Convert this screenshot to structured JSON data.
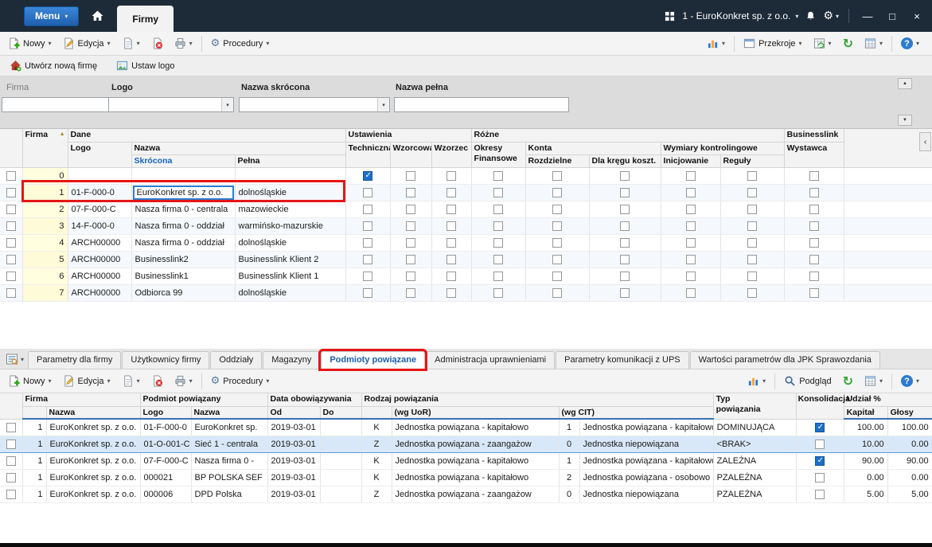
{
  "titlebar": {
    "menu": "Menu",
    "tab": "Firmy",
    "company_selector": "1 - EuroKonkret sp. z o.o."
  },
  "toolbar_top": {
    "nowy": "Nowy",
    "edycja": "Edycja",
    "procedury": "Procedury",
    "przekroje": "Przekroje"
  },
  "action_bar": {
    "create_company": "Utwórz nową firmę",
    "set_logo": "Ustaw logo"
  },
  "filter_panel": {
    "firma_label": "Firma",
    "logo_label": "Logo",
    "nazwa_skrocona_label": "Nazwa skrócona",
    "nazwa_pelna_label": "Nazwa pełna"
  },
  "icons": {
    "caret_down": "▾",
    "gear": "⚙",
    "refresh": "↻",
    "minimize": "—",
    "maximize": "□",
    "close": "×",
    "sort_asc": "▲",
    "scroll_up": "▲",
    "scroll_down": "▼",
    "collapse_left": "‹",
    "filter_menu": "≡",
    "help": "?"
  },
  "main_table": {
    "headers": {
      "firma": "Firma",
      "dane": "Dane",
      "ustawienia": "Ustawienia",
      "rozne": "Różne",
      "businesslink": "Businesslink",
      "logo": "Logo",
      "nazwa": "Nazwa",
      "skrocona": "Skrócona",
      "pelna": "Pełna",
      "techniczna": "Techniczna",
      "wzorcowa": "Wzorcowa",
      "wzorzec": "Wzorzec",
      "okresy_finansowe": "Okresy Finansowe",
      "konta": "Konta",
      "rozdzielne": "Rozdzielne",
      "dla_kregu_koszt": "Dla kręgu koszt.",
      "wymiary_kontrolingowe": "Wymiary kontrolingowe",
      "inicjowanie": "Inicjowanie",
      "reguly": "Reguły",
      "wystawca": "Wystawca"
    },
    "rows": [
      {
        "firma": "0",
        "logo": "",
        "skrocona": "",
        "pelna": "",
        "techniczna": true,
        "wzorcowa": false,
        "wzorzec": false,
        "okresy": false,
        "rozdzielne": false,
        "dla_kregu": false,
        "inicjowanie": false,
        "reguly": false,
        "wystawca": false
      },
      {
        "firma": "1",
        "logo": "01-F-000-0",
        "skrocona": "EuroKonkret sp. z o.o.",
        "pelna": "dolnośląskie",
        "editing": true,
        "selected": true,
        "techniczna": false,
        "wzorcowa": false,
        "wzorzec": false,
        "okresy": false,
        "rozdzielne": false,
        "dla_kregu": false,
        "inicjowanie": false,
        "reguly": false,
        "wystawca": false
      },
      {
        "firma": "2",
        "logo": "07-F-000-C",
        "skrocona": "Nasza firma 0 - centrala",
        "pelna": "mazowieckie",
        "techniczna": false,
        "wzorcowa": false,
        "wzorzec": false,
        "okresy": false,
        "rozdzielne": false,
        "dla_kregu": false,
        "inicjowanie": false,
        "reguly": false,
        "wystawca": false
      },
      {
        "firma": "3",
        "logo": "14-F-000-0",
        "skrocona": "Nasza firma 0 - oddział",
        "pelna": "warmińsko-mazurskie",
        "techniczna": false,
        "wzorcowa": false,
        "wzorzec": false,
        "okresy": false,
        "rozdzielne": false,
        "dla_kregu": false,
        "inicjowanie": false,
        "reguly": false,
        "wystawca": false
      },
      {
        "firma": "4",
        "logo": "ARCH00000",
        "skrocona": "Nasza firma 0 - oddział",
        "pelna": "dolnośląskie",
        "techniczna": false,
        "wzorcowa": false,
        "wzorzec": false,
        "okresy": false,
        "rozdzielne": false,
        "dla_kregu": false,
        "inicjowanie": false,
        "reguly": false,
        "wystawca": false
      },
      {
        "firma": "5",
        "logo": "ARCH00000",
        "skrocona": "Businesslink2",
        "pelna": "Businesslink Klient 2",
        "techniczna": false,
        "wzorcowa": false,
        "wzorzec": false,
        "okresy": false,
        "rozdzielne": false,
        "dla_kregu": false,
        "inicjowanie": false,
        "reguly": false,
        "wystawca": false
      },
      {
        "firma": "6",
        "logo": "ARCH00000",
        "skrocona": "Businesslink1",
        "pelna": "Businesslink Klient 1",
        "techniczna": false,
        "wzorcowa": false,
        "wzorzec": false,
        "okresy": false,
        "rozdzielne": false,
        "dla_kregu": false,
        "inicjowanie": false,
        "reguly": false,
        "wystawca": false
      },
      {
        "firma": "7",
        "logo": "ARCH00000",
        "skrocona": "Odbiorca 99",
        "pelna": "dolnośląskie",
        "techniczna": false,
        "wzorcowa": false,
        "wzorzec": false,
        "okresy": false,
        "rozdzielne": false,
        "dla_kregu": false,
        "inicjowanie": false,
        "reguly": false,
        "wystawca": false
      }
    ]
  },
  "bottom_tabs": {
    "tabs": [
      "Parametry dla firmy",
      "Użytkownicy firmy",
      "Oddziały",
      "Magazyny",
      "Podmioty powiązane",
      "Administracja uprawnieniami",
      "Parametry komunikacji z UPS",
      "Wartości parametrów dla JPK Sprawozdania"
    ],
    "active_index": 4
  },
  "toolbar_bottom": {
    "nowy": "Nowy",
    "edycja": "Edycja",
    "procedury": "Procedury",
    "podglad": "Podgląd"
  },
  "bottom_table": {
    "headers": {
      "firma": "Firma",
      "nazwa": "Nazwa",
      "podmiot_powiazany": "Podmiot powiązany",
      "logo": "Logo",
      "nazwa2": "Nazwa",
      "data_obowiazywania": "Data obowiązywania",
      "od": "Od",
      "do": "Do",
      "rodzaj_powiazania": "Rodzaj powiązania",
      "wg_uor": "(wg UoR)",
      "wg_cit": "(wg CIT)",
      "typ_powiazania": "Typ powiązania",
      "konsolidacja": "Konsolidacja",
      "udzial": "Udział %",
      "kapital": "Kapitał",
      "glosy": "Głosy"
    },
    "rows": [
      {
        "firma": "1",
        "firma_nazwa": "EuroKonkret sp. z o.o.",
        "logo": "01-F-000-0",
        "nazwa": "EuroKonkret sp.",
        "od": "2019-03-01",
        "do": "",
        "kod_uor": "K",
        "rodzaj_uor": "Jednostka powiązana - kapitałowo",
        "kod_cit": "1",
        "rodzaj_cit": "Jednostka powiązana - kapitałowo",
        "typ": "DOMINUJĄCA",
        "konsolidacja": true,
        "kapital": "100.00",
        "glosy": "100.00"
      },
      {
        "firma": "1",
        "firma_nazwa": "EuroKonkret sp. z o.o.",
        "logo": "01-O-001-C",
        "nazwa": "Sieć 1 - centrala",
        "od": "2019-03-01",
        "do": "",
        "kod_uor": "Z",
        "rodzaj_uor": "Jednostka powiązana - zaangażow",
        "kod_cit": "0",
        "rodzaj_cit": "Jednostka niepowiązana",
        "typ": "<BRAK>",
        "konsolidacja": false,
        "kapital": "10.00",
        "glosy": "0.00",
        "selected": true
      },
      {
        "firma": "1",
        "firma_nazwa": "EuroKonkret sp. z o.o.",
        "logo": "07-F-000-C",
        "nazwa": "Nasza firma 0 -",
        "od": "2019-03-01",
        "do": "",
        "kod_uor": "K",
        "rodzaj_uor": "Jednostka powiązana - kapitałowo",
        "kod_cit": "1",
        "rodzaj_cit": "Jednostka powiązana - kapitałowo",
        "typ": "ZALEŻNA",
        "konsolidacja": true,
        "kapital": "90.00",
        "glosy": "90.00"
      },
      {
        "firma": "1",
        "firma_nazwa": "EuroKonkret sp. z o.o.",
        "logo": "000021",
        "nazwa": "BP POLSKA SEF",
        "od": "2019-03-01",
        "do": "",
        "kod_uor": "K",
        "rodzaj_uor": "Jednostka powiązana - kapitałowo",
        "kod_cit": "2",
        "rodzaj_cit": "Jednostka powiązana - osobowo",
        "typ": "PZALEŻNA",
        "konsolidacja": false,
        "kapital": "0.00",
        "glosy": "0.00"
      },
      {
        "firma": "1",
        "firma_nazwa": "EuroKonkret sp. z o.o.",
        "logo": "000006",
        "nazwa": "DPD Polska",
        "od": "2019-03-01",
        "do": "",
        "kod_uor": "Z",
        "rodzaj_uor": "Jednostka powiązana - zaangażow",
        "kod_cit": "0",
        "rodzaj_cit": "Jednostka niepowiązana",
        "typ": "PZALEŻNA",
        "konsolidacja": false,
        "kapital": "5.00",
        "glosy": "5.00"
      }
    ]
  },
  "colors": {
    "titlebar_bg": "#1d2a38",
    "accent_blue": "#1d6fc9",
    "selection_blue": "#d8e8f8",
    "annotation_red": "#e51616",
    "firma_column_yellow": "#ffffdf"
  }
}
